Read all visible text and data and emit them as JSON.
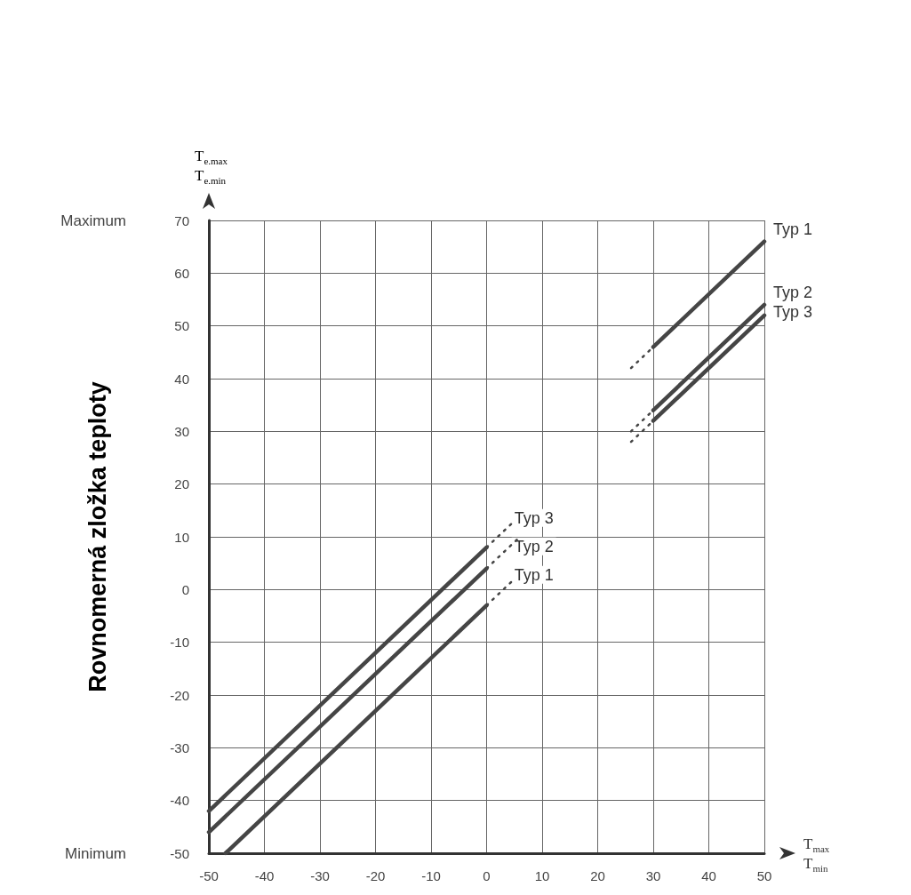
{
  "chart_data": {
    "type": "line",
    "ylabel": "Rovnomerná zložka teploty",
    "xlabel": "T$_{max}$\nT$_{min}$",
    "xlim": [
      -50,
      50
    ],
    "xticks": [
      -50,
      -40,
      -30,
      -20,
      -10,
      0,
      10,
      20,
      30,
      40,
      50
    ],
    "ylim": [
      -50,
      70
    ],
    "yticks": [
      -50,
      -40,
      -30,
      -20,
      -10,
      0,
      10,
      20,
      30,
      40,
      50,
      60,
      70
    ],
    "grid": true,
    "legend": false,
    "marker": "none",
    "annotations": [
      "Maximum",
      "Minimum",
      "T$_{e.max}$\nT$_{e.min}$",
      "Typ 3",
      "Typ 2",
      "Typ 1"
    ],
    "series": [
      {
        "name": "Typ 1",
        "color": "#454545",
        "x": [
          30,
          50
        ],
        "values": [
          46,
          66
        ],
        "line_style": "solid"
      },
      {
        "name": "Typ 2",
        "color": "#454545",
        "x": [
          30,
          50
        ],
        "values": [
          34,
          54
        ],
        "line_style": "solid"
      },
      {
        "name": "Typ 3",
        "color": "#454545",
        "x": [
          30,
          50
        ],
        "values": [
          32,
          52
        ],
        "line_style": "solid"
      },
      {
        "color": "#454545",
        "x": [
          -47,
          0
        ],
        "values": [
          -50,
          -3
        ],
        "line_style": "solid"
      },
      {
        "color": "#454545",
        "x": [
          -50,
          0
        ],
        "values": [
          -46,
          4
        ],
        "line_style": "solid"
      },
      {
        "color": "#454545",
        "x": [
          -50,
          0
        ],
        "values": [
          -42,
          8
        ],
        "line_style": "solid"
      },
      {
        "color": "#454545",
        "x": [
          26,
          30
        ],
        "values": [
          42,
          46
        ],
        "line_style": "dotted"
      },
      {
        "color": "#454545",
        "x": [
          26,
          30
        ],
        "values": [
          30,
          34
        ],
        "line_style": "dotted"
      },
      {
        "color": "#454545",
        "x": [
          26,
          30
        ],
        "values": [
          28,
          32
        ],
        "line_style": "dotted"
      },
      {
        "color": "#454545",
        "x": [
          0,
          5
        ],
        "values": [
          -3,
          2
        ],
        "line_style": "dotted"
      },
      {
        "color": "#454545",
        "x": [
          0,
          6
        ],
        "values": [
          4,
          10
        ],
        "line_style": "dotted"
      },
      {
        "color": "#454545",
        "x": [
          0,
          5
        ],
        "values": [
          8,
          13
        ],
        "line_style": "dotted"
      }
    ]
  }
}
